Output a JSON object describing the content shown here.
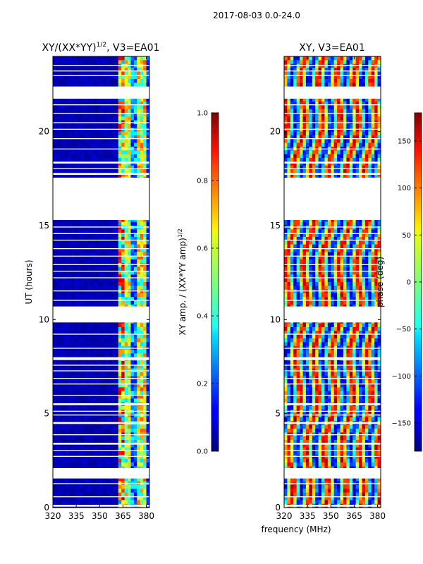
{
  "chart_data": {
    "figure_title": "2017-08-03 0.0-24.0",
    "x_common_label": "frequency (MHz)",
    "panels": [
      {
        "type": "heatmap",
        "title_main": "XY/(XX*YY)",
        "title_sup": "1/2",
        "title_tail": ", V3=EA01",
        "ylabel": "UT (hours)",
        "xlim": [
          320,
          382
        ],
        "ylim": [
          0,
          24
        ],
        "xticks": [
          320,
          335,
          350,
          365,
          380
        ],
        "yticks": [
          0,
          5,
          10,
          15,
          20
        ],
        "colormap": "jet",
        "colorbar": {
          "label": "XY amp. / (XX*YY amp)^1/2",
          "range": [
            0.0,
            1.0
          ],
          "ticks": [
            "0.0",
            "0.2",
            "0.4",
            "0.6",
            "0.8",
            "1.0"
          ]
        }
      },
      {
        "type": "heatmap",
        "title_main": "XY, V3=EA01",
        "ylabel": "",
        "xlim": [
          320,
          382
        ],
        "ylim": [
          0,
          24
        ],
        "xticks": [
          320,
          335,
          350,
          365,
          380
        ],
        "yticks": [
          0,
          5,
          10,
          15,
          20
        ],
        "colormap": "jet",
        "colorbar": {
          "label": "phase (deg)",
          "range": [
            -180,
            180
          ],
          "ticks": [
            "−150",
            "−100",
            "−50",
            "0",
            "50",
            "100",
            "150"
          ]
        }
      }
    ],
    "data_gaps_hours": [
      [
        0.05,
        0.15
      ],
      [
        0.55,
        0.6
      ],
      [
        1.25,
        1.3
      ],
      [
        1.55,
        2.1
      ],
      [
        2.7,
        2.75
      ],
      [
        3.0,
        3.05
      ],
      [
        3.35,
        3.45
      ],
      [
        3.85,
        3.9
      ],
      [
        4.45,
        4.55
      ],
      [
        4.9,
        4.95
      ],
      [
        5.1,
        5.15
      ],
      [
        5.45,
        5.55
      ],
      [
        5.95,
        6.0
      ],
      [
        6.55,
        6.6
      ],
      [
        6.85,
        6.9
      ],
      [
        7.25,
        7.3
      ],
      [
        7.55,
        7.6
      ],
      [
        7.85,
        8.0
      ],
      [
        8.45,
        8.5
      ],
      [
        9.2,
        9.25
      ],
      [
        9.85,
        10.7
      ],
      [
        11.0,
        11.05
      ],
      [
        11.5,
        11.55
      ],
      [
        12.2,
        12.25
      ],
      [
        12.55,
        12.6
      ],
      [
        12.9,
        12.95
      ],
      [
        13.35,
        13.4
      ],
      [
        13.75,
        13.8
      ],
      [
        14.2,
        14.25
      ],
      [
        14.55,
        14.6
      ],
      [
        14.9,
        14.95
      ],
      [
        15.3,
        17.55
      ],
      [
        17.7,
        17.8
      ],
      [
        18.0,
        18.05
      ],
      [
        18.3,
        18.4
      ],
      [
        19.05,
        19.1
      ],
      [
        19.6,
        19.65
      ],
      [
        20.1,
        20.15
      ],
      [
        20.45,
        20.5
      ],
      [
        20.95,
        21.0
      ],
      [
        21.4,
        21.45
      ],
      [
        21.75,
        22.4
      ],
      [
        22.95,
        23.0
      ],
      [
        23.2,
        23.25
      ],
      [
        23.5,
        23.55
      ]
    ]
  }
}
